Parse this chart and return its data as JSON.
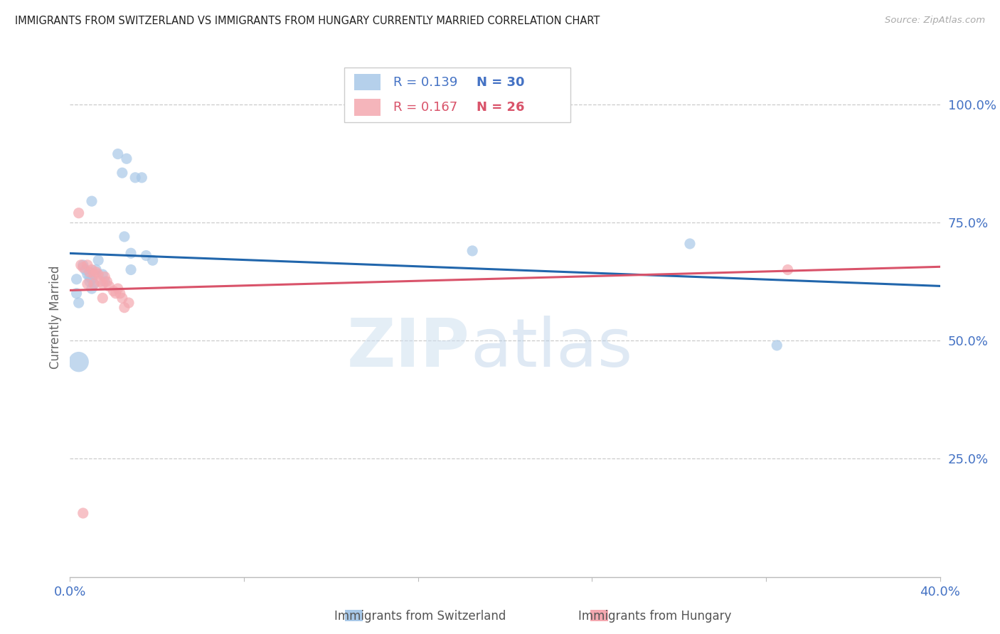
{
  "title": "IMMIGRANTS FROM SWITZERLAND VS IMMIGRANTS FROM HUNGARY CURRENTLY MARRIED CORRELATION CHART",
  "source": "Source: ZipAtlas.com",
  "ylabel": "Currently Married",
  "ytick_labels": [
    "100.0%",
    "75.0%",
    "50.0%",
    "25.0%"
  ],
  "ytick_values": [
    1.0,
    0.75,
    0.5,
    0.25
  ],
  "xlim": [
    0.0,
    0.4
  ],
  "ylim": [
    0.0,
    1.1
  ],
  "legend_r1": "R = 0.139",
  "legend_n1": "N = 30",
  "legend_r2": "R = 0.167",
  "legend_n2": "N = 26",
  "label1": "Immigrants from Switzerland",
  "label2": "Immigrants from Hungary",
  "color1": "#a8c8e8",
  "color2": "#f4a8b0",
  "trendline_color1": "#2166ac",
  "trendline_color2": "#d9536a",
  "watermark_zip": "ZIP",
  "watermark_atlas": "atlas",
  "background_color": "#ffffff",
  "scatter1_x": [
    0.022,
    0.026,
    0.024,
    0.033,
    0.03,
    0.01,
    0.025,
    0.028,
    0.028,
    0.035,
    0.038,
    0.006,
    0.007,
    0.008,
    0.009,
    0.009,
    0.01,
    0.01,
    0.011,
    0.012,
    0.013,
    0.015,
    0.016,
    0.003,
    0.003,
    0.185,
    0.285,
    0.325,
    0.004,
    0.004
  ],
  "scatter1_y": [
    0.895,
    0.885,
    0.855,
    0.845,
    0.845,
    0.795,
    0.72,
    0.685,
    0.65,
    0.68,
    0.67,
    0.66,
    0.65,
    0.64,
    0.635,
    0.625,
    0.61,
    0.63,
    0.62,
    0.65,
    0.67,
    0.64,
    0.625,
    0.63,
    0.6,
    0.69,
    0.705,
    0.49,
    0.455,
    0.58
  ],
  "scatter1_size": [
    120,
    120,
    120,
    120,
    120,
    120,
    120,
    120,
    120,
    120,
    120,
    120,
    120,
    120,
    120,
    120,
    120,
    120,
    120,
    120,
    120,
    120,
    120,
    120,
    120,
    120,
    120,
    120,
    420,
    120
  ],
  "scatter2_x": [
    0.004,
    0.005,
    0.006,
    0.008,
    0.009,
    0.01,
    0.011,
    0.011,
    0.012,
    0.013,
    0.014,
    0.015,
    0.016,
    0.017,
    0.018,
    0.02,
    0.021,
    0.022,
    0.023,
    0.024,
    0.025,
    0.027,
    0.33,
    0.008,
    0.015,
    0.006
  ],
  "scatter2_y": [
    0.77,
    0.66,
    0.655,
    0.66,
    0.645,
    0.65,
    0.64,
    0.62,
    0.645,
    0.64,
    0.625,
    0.62,
    0.635,
    0.625,
    0.615,
    0.605,
    0.6,
    0.61,
    0.6,
    0.59,
    0.57,
    0.58,
    0.65,
    0.62,
    0.59,
    0.135
  ],
  "scatter2_size": [
    120,
    120,
    120,
    120,
    120,
    120,
    120,
    120,
    120,
    120,
    120,
    120,
    120,
    120,
    120,
    120,
    120,
    120,
    120,
    120,
    120,
    120,
    120,
    120,
    120,
    120
  ]
}
